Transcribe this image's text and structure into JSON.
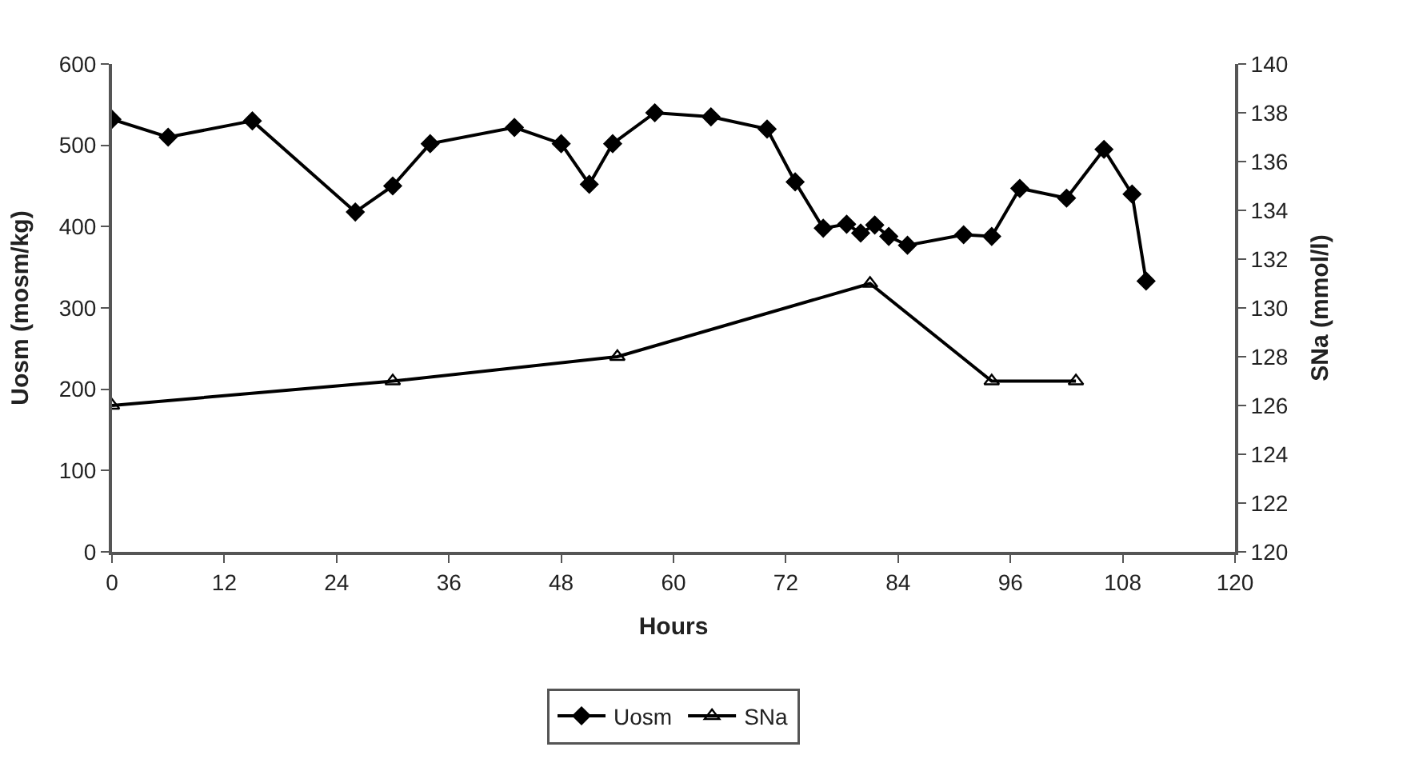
{
  "chart_data": {
    "type": "line",
    "xlabel": "Hours",
    "ylabel": "Uosm (mosm/kg)",
    "y2label": "SNa (mmol/l)",
    "xlim": [
      0,
      120
    ],
    "xticks": [
      0,
      12,
      24,
      36,
      48,
      60,
      72,
      84,
      96,
      108,
      120
    ],
    "ylim": [
      0,
      600
    ],
    "yticks": [
      0,
      100,
      200,
      300,
      400,
      500,
      600
    ],
    "y2lim": [
      120,
      140
    ],
    "y2ticks": [
      120,
      122,
      124,
      126,
      128,
      130,
      132,
      134,
      136,
      138,
      140
    ],
    "legend": "bottom",
    "series": [
      {
        "name": "Uosm",
        "color": "#000000",
        "marker": "diamond",
        "x": [
          0,
          6,
          15,
          26,
          30,
          34,
          43,
          48,
          51,
          53.5,
          58,
          64,
          70,
          73,
          76,
          78.5,
          80,
          81.5,
          83,
          85,
          91,
          94,
          97,
          102,
          106,
          109,
          110.5
        ],
        "values": [
          532,
          510,
          530,
          418,
          450,
          502,
          522,
          502,
          452,
          502,
          540,
          535,
          520,
          455,
          398,
          403,
          392,
          402,
          388,
          377,
          390,
          388,
          447,
          435,
          495,
          440,
          333
        ]
      },
      {
        "name": "SNa",
        "color": "#000000",
        "marker": "triangle",
        "axis": "y2",
        "x": [
          0,
          30,
          54,
          81,
          94,
          103
        ],
        "values": [
          126,
          127,
          128,
          131,
          127,
          127
        ]
      }
    ]
  }
}
